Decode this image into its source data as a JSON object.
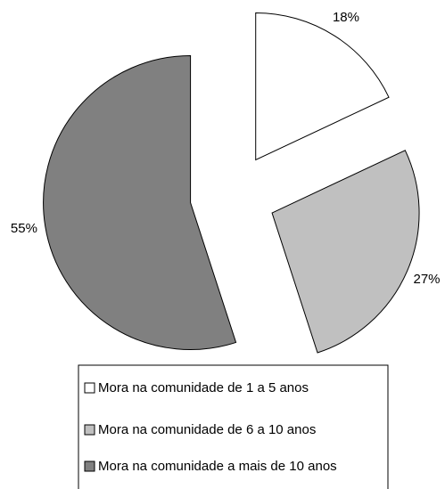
{
  "chart_data": {
    "type": "pie",
    "categories": [
      "Mora na comunidade de 1 a 5 anos",
      "Mora na comunidade de 6 a 10 anos",
      "Mora na comunidade a mais de 10 anos"
    ],
    "values": [
      18,
      27,
      55
    ],
    "value_labels": [
      "18%",
      "27%",
      "55%"
    ],
    "colors": [
      "#ffffff",
      "#c0c0c0",
      "#808080"
    ],
    "exploded": true
  }
}
